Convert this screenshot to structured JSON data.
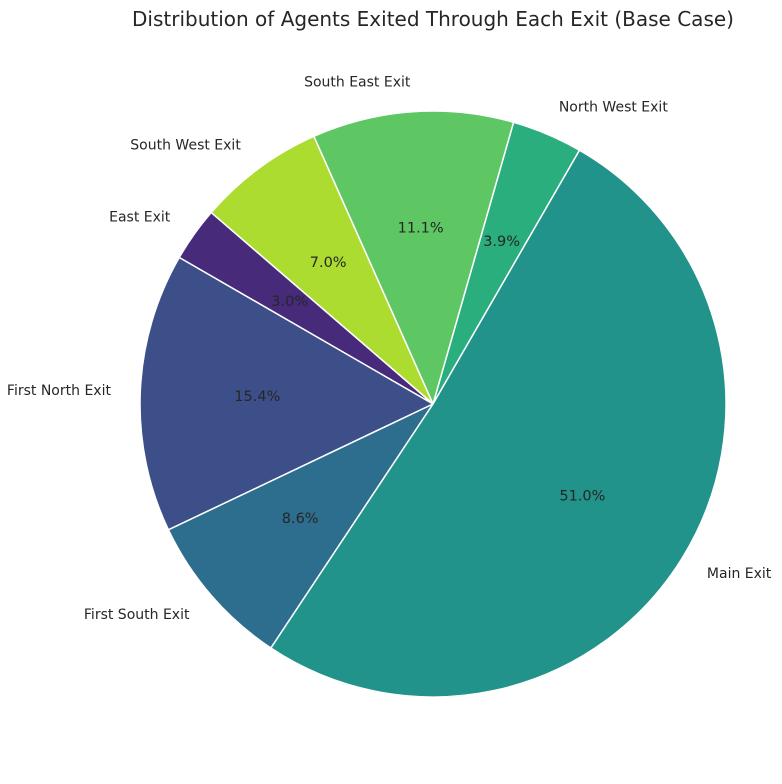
{
  "chart_data": {
    "type": "pie",
    "title": "Distribution of Agents Exited Through Each Exit (Base Case)",
    "start_angle_deg": 60,
    "direction": "counterclockwise",
    "slices": [
      {
        "label": "North West Exit",
        "value": 3.9,
        "pct_label": "3.9%",
        "color": "#2aae7e"
      },
      {
        "label": "South East Exit",
        "value": 11.1,
        "pct_label": "11.1%",
        "color": "#5ec763"
      },
      {
        "label": "South West Exit",
        "value": 7.0,
        "pct_label": "7.0%",
        "color": "#addc30"
      },
      {
        "label": "East Exit",
        "value": 3.0,
        "pct_label": "3.0%",
        "color": "#482a7b"
      },
      {
        "label": "First North Exit",
        "value": 15.4,
        "pct_label": "15.4%",
        "color": "#3c4f89"
      },
      {
        "label": "First South Exit",
        "value": 8.6,
        "pct_label": "8.6%",
        "color": "#2d6d8e"
      },
      {
        "label": "Main Exit",
        "value": 51.0,
        "pct_label": "51.0%",
        "color": "#21938a"
      }
    ]
  }
}
